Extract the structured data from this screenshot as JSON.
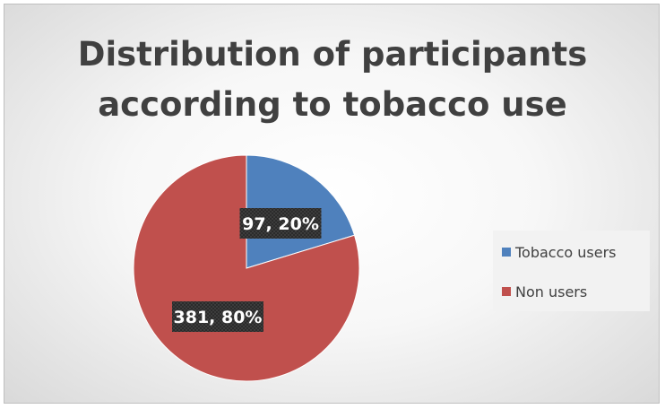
{
  "chart_data": {
    "type": "pie",
    "title": "Distribution of participants according to tobacco use",
    "title_lines": [
      "Distribution of participants",
      "according to tobacco use"
    ],
    "slices": [
      {
        "name": "Tobacco users",
        "value": 97,
        "percent": 20,
        "label": "97, 20%",
        "color": "#4F81BD"
      },
      {
        "name": "Non users",
        "value": 381,
        "percent": 80,
        "label": "381, 80%",
        "color": "#C0504D"
      }
    ],
    "legend_position": "right"
  }
}
